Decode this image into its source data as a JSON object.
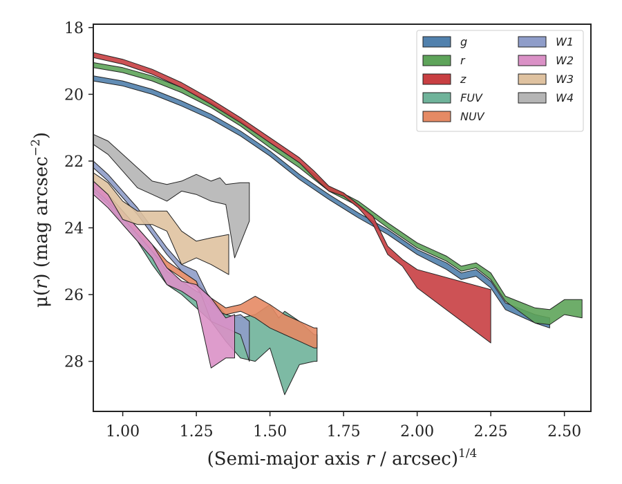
{
  "chart_data": {
    "type": "area",
    "xlabel": "(Semi-major axis r / arcsec)^1/4",
    "ylabel": "μ(r) (mag arcsec⁻²)",
    "xlim": [
      0.9,
      2.59
    ],
    "ylim": [
      29.5,
      17.9
    ],
    "y_inverted": true,
    "x_ticks": [
      "1.00",
      "1.25",
      "1.50",
      "1.75",
      "2.00",
      "2.25",
      "2.50"
    ],
    "x_tick_values": [
      1.0,
      1.25,
      1.5,
      1.75,
      2.0,
      2.25,
      2.5
    ],
    "y_ticks": [
      "18",
      "20",
      "22",
      "24",
      "26",
      "28"
    ],
    "y_tick_values": [
      18,
      20,
      22,
      24,
      26,
      28
    ],
    "grid": false,
    "legend_placement": "top-right",
    "series": [
      {
        "name": "g",
        "color": "#5181ad",
        "upper": [
          [
            0.9,
            19.45
          ],
          [
            1.0,
            19.6
          ],
          [
            1.1,
            19.85
          ],
          [
            1.2,
            20.2
          ],
          [
            1.3,
            20.6
          ],
          [
            1.4,
            21.1
          ],
          [
            1.5,
            21.7
          ],
          [
            1.6,
            22.4
          ],
          [
            1.7,
            23.0
          ],
          [
            1.8,
            23.55
          ],
          [
            1.9,
            24.05
          ],
          [
            2.0,
            24.65
          ],
          [
            2.1,
            25.05
          ],
          [
            2.15,
            25.35
          ],
          [
            2.2,
            25.25
          ],
          [
            2.25,
            25.6
          ],
          [
            2.3,
            26.25
          ],
          [
            2.4,
            26.6
          ],
          [
            2.45,
            26.7
          ]
        ],
        "lower": [
          [
            0.9,
            19.6
          ],
          [
            1.0,
            19.75
          ],
          [
            1.1,
            20.0
          ],
          [
            1.2,
            20.35
          ],
          [
            1.3,
            20.75
          ],
          [
            1.4,
            21.25
          ],
          [
            1.5,
            21.85
          ],
          [
            1.6,
            22.55
          ],
          [
            1.7,
            23.15
          ],
          [
            1.8,
            23.7
          ],
          [
            1.9,
            24.2
          ],
          [
            2.0,
            24.8
          ],
          [
            2.1,
            25.25
          ],
          [
            2.15,
            25.55
          ],
          [
            2.2,
            25.45
          ],
          [
            2.25,
            25.8
          ],
          [
            2.3,
            26.45
          ],
          [
            2.4,
            26.85
          ],
          [
            2.45,
            27.0
          ]
        ]
      },
      {
        "name": "r",
        "color": "#5ea45a",
        "upper": [
          [
            0.9,
            19.05
          ],
          [
            1.0,
            19.2
          ],
          [
            1.1,
            19.45
          ],
          [
            1.2,
            19.8
          ],
          [
            1.3,
            20.25
          ],
          [
            1.4,
            20.8
          ],
          [
            1.5,
            21.45
          ],
          [
            1.6,
            22.05
          ],
          [
            1.7,
            22.75
          ],
          [
            1.8,
            23.2
          ],
          [
            1.9,
            23.85
          ],
          [
            2.0,
            24.45
          ],
          [
            2.1,
            24.85
          ],
          [
            2.15,
            25.15
          ],
          [
            2.2,
            25.05
          ],
          [
            2.25,
            25.35
          ],
          [
            2.3,
            26.05
          ],
          [
            2.4,
            26.4
          ],
          [
            2.45,
            26.45
          ],
          [
            2.5,
            26.15
          ],
          [
            2.56,
            26.15
          ]
        ],
        "lower": [
          [
            0.9,
            19.2
          ],
          [
            1.0,
            19.35
          ],
          [
            1.1,
            19.6
          ],
          [
            1.2,
            19.95
          ],
          [
            1.3,
            20.4
          ],
          [
            1.4,
            20.95
          ],
          [
            1.5,
            21.6
          ],
          [
            1.6,
            22.2
          ],
          [
            1.7,
            22.9
          ],
          [
            1.8,
            23.35
          ],
          [
            1.9,
            24.0
          ],
          [
            2.0,
            24.6
          ],
          [
            2.1,
            25.0
          ],
          [
            2.15,
            25.3
          ],
          [
            2.2,
            25.2
          ],
          [
            2.25,
            25.55
          ],
          [
            2.3,
            26.2
          ],
          [
            2.4,
            26.85
          ],
          [
            2.45,
            26.9
          ],
          [
            2.5,
            26.6
          ],
          [
            2.56,
            26.7
          ]
        ]
      },
      {
        "name": "z",
        "color": "#c83f42",
        "upper": [
          [
            0.9,
            18.75
          ],
          [
            1.0,
            18.95
          ],
          [
            1.1,
            19.25
          ],
          [
            1.2,
            19.65
          ],
          [
            1.3,
            20.15
          ],
          [
            1.4,
            20.7
          ],
          [
            1.5,
            21.3
          ],
          [
            1.6,
            21.9
          ],
          [
            1.65,
            22.3
          ],
          [
            1.7,
            22.75
          ],
          [
            1.75,
            22.95
          ],
          [
            1.8,
            23.3
          ],
          [
            1.85,
            23.65
          ],
          [
            1.9,
            24.55
          ],
          [
            1.95,
            24.95
          ],
          [
            2.0,
            25.25
          ],
          [
            2.25,
            25.85
          ]
        ],
        "lower": [
          [
            0.9,
            18.9
          ],
          [
            1.0,
            19.1
          ],
          [
            1.1,
            19.4
          ],
          [
            1.2,
            19.8
          ],
          [
            1.3,
            20.3
          ],
          [
            1.4,
            20.85
          ],
          [
            1.5,
            21.45
          ],
          [
            1.6,
            22.05
          ],
          [
            1.65,
            22.5
          ],
          [
            1.7,
            22.9
          ],
          [
            1.75,
            23.05
          ],
          [
            1.8,
            23.4
          ],
          [
            1.85,
            23.9
          ],
          [
            1.9,
            24.8
          ],
          [
            1.95,
            25.15
          ],
          [
            2.0,
            25.8
          ],
          [
            2.25,
            27.45
          ]
        ]
      },
      {
        "name": "FUV",
        "color": "#6fb39a",
        "upper": [
          [
            0.9,
            22.7
          ],
          [
            0.95,
            23.1
          ],
          [
            1.0,
            23.6
          ],
          [
            1.05,
            24.1
          ],
          [
            1.1,
            24.7
          ],
          [
            1.15,
            25.3
          ],
          [
            1.2,
            25.6
          ],
          [
            1.25,
            25.9
          ],
          [
            1.3,
            26.1
          ],
          [
            1.35,
            26.6
          ],
          [
            1.4,
            26.7
          ],
          [
            1.45,
            26.6
          ],
          [
            1.5,
            26.3
          ],
          [
            1.53,
            26.7
          ],
          [
            1.55,
            26.5
          ],
          [
            1.6,
            26.8
          ],
          [
            1.65,
            27.2
          ],
          [
            1.66,
            27.2
          ]
        ],
        "lower": [
          [
            0.9,
            22.9
          ],
          [
            0.95,
            23.3
          ],
          [
            1.0,
            23.9
          ],
          [
            1.05,
            24.4
          ],
          [
            1.1,
            25.1
          ],
          [
            1.15,
            25.7
          ],
          [
            1.2,
            26.0
          ],
          [
            1.25,
            26.4
          ],
          [
            1.3,
            26.8
          ],
          [
            1.35,
            27.4
          ],
          [
            1.4,
            27.9
          ],
          [
            1.45,
            28.0
          ],
          [
            1.5,
            27.6
          ],
          [
            1.55,
            29.0
          ],
          [
            1.6,
            28.1
          ],
          [
            1.65,
            28.0
          ],
          [
            1.66,
            28.0
          ]
        ]
      },
      {
        "name": "NUV",
        "color": "#e58a64",
        "upper": [
          [
            0.9,
            22.6
          ],
          [
            0.95,
            23.0
          ],
          [
            1.0,
            23.5
          ],
          [
            1.05,
            24.0
          ],
          [
            1.1,
            24.5
          ],
          [
            1.15,
            25.0
          ],
          [
            1.2,
            25.3
          ],
          [
            1.25,
            25.6
          ],
          [
            1.3,
            26.1
          ],
          [
            1.35,
            26.4
          ],
          [
            1.4,
            26.3
          ],
          [
            1.45,
            26.05
          ],
          [
            1.5,
            26.3
          ],
          [
            1.55,
            26.6
          ],
          [
            1.6,
            26.8
          ],
          [
            1.65,
            27.0
          ],
          [
            1.66,
            27.0
          ]
        ],
        "lower": [
          [
            0.9,
            22.8
          ],
          [
            0.95,
            23.2
          ],
          [
            1.0,
            23.7
          ],
          [
            1.05,
            24.2
          ],
          [
            1.1,
            24.7
          ],
          [
            1.15,
            25.2
          ],
          [
            1.2,
            25.5
          ],
          [
            1.25,
            25.8
          ],
          [
            1.3,
            26.4
          ],
          [
            1.35,
            26.6
          ],
          [
            1.4,
            26.5
          ],
          [
            1.45,
            26.7
          ],
          [
            1.5,
            27.0
          ],
          [
            1.55,
            27.2
          ],
          [
            1.6,
            27.4
          ],
          [
            1.65,
            27.6
          ],
          [
            1.66,
            27.6
          ]
        ]
      },
      {
        "name": "W1",
        "color": "#8f9dc9",
        "upper": [
          [
            0.9,
            22.0
          ],
          [
            0.95,
            22.4
          ],
          [
            1.0,
            22.9
          ],
          [
            1.05,
            23.4
          ],
          [
            1.1,
            24.0
          ],
          [
            1.15,
            24.6
          ],
          [
            1.2,
            25.1
          ],
          [
            1.25,
            25.3
          ],
          [
            1.3,
            26.2
          ],
          [
            1.35,
            26.7
          ],
          [
            1.4,
            26.6
          ],
          [
            1.43,
            26.8
          ]
        ],
        "lower": [
          [
            0.9,
            22.2
          ],
          [
            0.95,
            22.6
          ],
          [
            1.0,
            23.1
          ],
          [
            1.05,
            23.6
          ],
          [
            1.1,
            24.2
          ],
          [
            1.15,
            24.8
          ],
          [
            1.2,
            25.3
          ],
          [
            1.25,
            25.6
          ],
          [
            1.3,
            26.8
          ],
          [
            1.35,
            27.0
          ],
          [
            1.4,
            27.2
          ],
          [
            1.43,
            28.0
          ]
        ]
      },
      {
        "name": "W2",
        "color": "#da91c6",
        "upper": [
          [
            0.9,
            22.6
          ],
          [
            0.95,
            23.0
          ],
          [
            1.0,
            23.5
          ],
          [
            1.05,
            24.0
          ],
          [
            1.1,
            24.5
          ],
          [
            1.15,
            25.2
          ],
          [
            1.2,
            25.6
          ],
          [
            1.25,
            25.7
          ],
          [
            1.3,
            26.1
          ],
          [
            1.35,
            26.7
          ],
          [
            1.38,
            26.6
          ]
        ],
        "lower": [
          [
            0.9,
            23.0
          ],
          [
            0.95,
            23.4
          ],
          [
            1.0,
            23.9
          ],
          [
            1.05,
            24.4
          ],
          [
            1.1,
            24.9
          ],
          [
            1.15,
            25.7
          ],
          [
            1.2,
            25.9
          ],
          [
            1.25,
            26.2
          ],
          [
            1.3,
            28.2
          ],
          [
            1.35,
            27.9
          ],
          [
            1.38,
            27.9
          ]
        ]
      },
      {
        "name": "W3",
        "color": "#dfc2a0",
        "upper": [
          [
            0.9,
            22.35
          ],
          [
            0.95,
            22.65
          ],
          [
            1.0,
            23.2
          ],
          [
            1.05,
            23.5
          ],
          [
            1.1,
            23.5
          ],
          [
            1.15,
            23.5
          ],
          [
            1.2,
            24.1
          ],
          [
            1.25,
            24.4
          ],
          [
            1.3,
            24.3
          ],
          [
            1.36,
            24.2
          ]
        ],
        "lower": [
          [
            0.9,
            22.6
          ],
          [
            0.95,
            23.0
          ],
          [
            1.0,
            23.75
          ],
          [
            1.05,
            23.9
          ],
          [
            1.1,
            23.9
          ],
          [
            1.15,
            24.1
          ],
          [
            1.2,
            25.1
          ],
          [
            1.25,
            24.9
          ],
          [
            1.3,
            25.1
          ],
          [
            1.36,
            25.4
          ]
        ]
      },
      {
        "name": "W4",
        "color": "#b5b5b5",
        "upper": [
          [
            0.9,
            21.2
          ],
          [
            0.95,
            21.4
          ],
          [
            1.0,
            21.8
          ],
          [
            1.05,
            22.2
          ],
          [
            1.1,
            22.6
          ],
          [
            1.15,
            22.7
          ],
          [
            1.2,
            22.6
          ],
          [
            1.25,
            22.4
          ],
          [
            1.3,
            22.6
          ],
          [
            1.33,
            22.5
          ],
          [
            1.35,
            22.7
          ],
          [
            1.4,
            22.65
          ],
          [
            1.43,
            22.65
          ]
        ],
        "lower": [
          [
            0.9,
            21.5
          ],
          [
            0.95,
            21.8
          ],
          [
            1.0,
            22.3
          ],
          [
            1.05,
            22.8
          ],
          [
            1.1,
            23.0
          ],
          [
            1.15,
            23.2
          ],
          [
            1.2,
            22.9
          ],
          [
            1.25,
            23.0
          ],
          [
            1.3,
            23.2
          ],
          [
            1.35,
            23.3
          ],
          [
            1.38,
            24.9
          ],
          [
            1.43,
            23.8
          ]
        ]
      }
    ]
  }
}
